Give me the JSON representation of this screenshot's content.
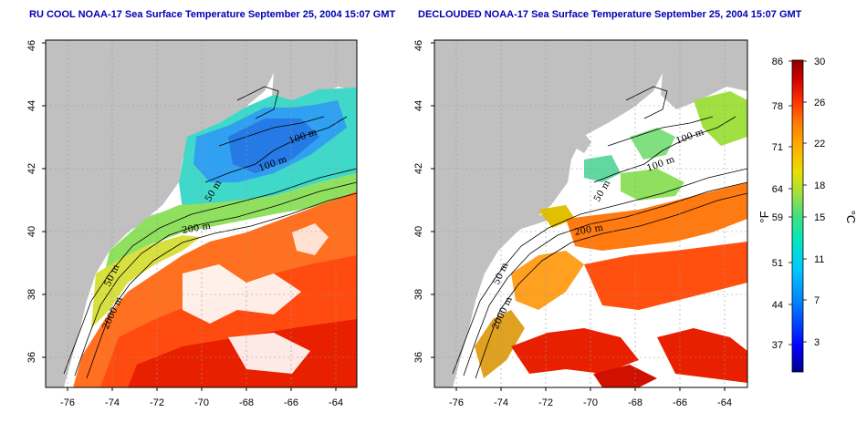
{
  "titles": {
    "left": "RU COOL NOAA-17 Sea Surface Temperature September 25, 2004 15:07 GMT",
    "right": "DECLOUDED NOAA-17 Sea Surface Temperature September 25, 2004 15:07 GMT"
  },
  "axes": {
    "lon_ticks": [
      "-76",
      "-74",
      "-72",
      "-70",
      "-68",
      "-66",
      "-64"
    ],
    "lat_ticks": [
      "36",
      "38",
      "40",
      "42",
      "44",
      "46"
    ]
  },
  "contour_labels": {
    "left": [
      "100 m",
      "100 m",
      "50 m",
      "200 m",
      "50 m",
      "2000 m"
    ],
    "right": [
      "100 m",
      "100 m",
      "50 m",
      "200 m",
      "50 m",
      "2000 m"
    ]
  },
  "colorbar": {
    "fahrenheit_ticks": [
      "86",
      "78",
      "71",
      "64",
      "59",
      "51",
      "44",
      "37"
    ],
    "celsius_ticks": [
      "30",
      "26",
      "22",
      "18",
      "15",
      "11",
      "7",
      "3"
    ],
    "fahrenheit_unit": "°F",
    "celsius_unit": "°C",
    "colors": [
      "#00008b",
      "#0000ff",
      "#0080ff",
      "#00c8ff",
      "#00e8c0",
      "#40e080",
      "#a0e040",
      "#e8e000",
      "#ffb000",
      "#ff7a00",
      "#ff3000",
      "#d00000",
      "#8b0000"
    ]
  },
  "colors": {
    "land": "#c0c0c0",
    "no_data": "#ffffff",
    "title": "#0000b4"
  }
}
